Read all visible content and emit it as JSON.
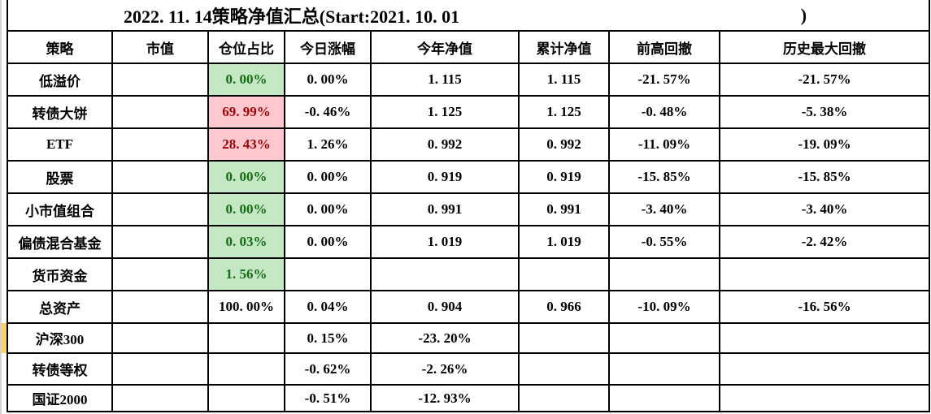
{
  "title": {
    "left": "2022. 11. 14策略净值汇总(Start:2021. 10. 01",
    "right": ")"
  },
  "table": {
    "columns": [
      "策略",
      "市值",
      "仓位占比",
      "今日涨幅",
      "今年净值",
      "累计净值",
      "前高回撤",
      "历史最大回撤"
    ],
    "rows": [
      {
        "name": "低溢价",
        "mv": "",
        "pos": "0. 00%",
        "pos_style": "good",
        "today": "0. 00%",
        "ytd": "1. 115",
        "cum": "1. 115",
        "dd": "-21. 57%",
        "maxdd": "-21. 57%"
      },
      {
        "name": "转债大饼",
        "mv": "",
        "pos": "69. 99%",
        "pos_style": "bad",
        "today": "-0. 46%",
        "ytd": "1. 125",
        "cum": "1. 125",
        "dd": "-0. 48%",
        "maxdd": "-5. 38%"
      },
      {
        "name": "ETF",
        "mv": "",
        "pos": "28. 43%",
        "pos_style": "bad",
        "today": "1. 26%",
        "ytd": "0. 992",
        "cum": "0. 992",
        "dd": "-11. 09%",
        "maxdd": "-19. 09%"
      },
      {
        "name": "股票",
        "mv": "",
        "pos": "0. 00%",
        "pos_style": "good",
        "today": "0. 00%",
        "ytd": "0. 919",
        "cum": "0. 919",
        "dd": "-15. 85%",
        "maxdd": "-15. 85%"
      },
      {
        "name": "小市值组合",
        "mv": "",
        "pos": "0. 00%",
        "pos_style": "good",
        "today": "0. 00%",
        "ytd": "0. 991",
        "cum": "0. 991",
        "dd": "-3. 40%",
        "maxdd": "-3. 40%"
      },
      {
        "name": "偏债混合基金",
        "mv": "",
        "pos": "0. 03%",
        "pos_style": "good",
        "today": "0. 00%",
        "ytd": "1. 019",
        "cum": "1. 019",
        "dd": "-0. 55%",
        "maxdd": "-2. 42%"
      },
      {
        "name": "货币资金",
        "mv": "",
        "pos": "1. 56%",
        "pos_style": "good",
        "today": "",
        "ytd": "",
        "cum": "",
        "dd": "",
        "maxdd": ""
      },
      {
        "name": "总资产",
        "mv": "",
        "pos": "100. 00%",
        "pos_style": "plain",
        "today": "0. 04%",
        "ytd": "0. 904",
        "cum": "0. 966",
        "dd": "-10. 09%",
        "maxdd": "-16. 56%"
      },
      {
        "name": "沪深300",
        "mv": "",
        "pos": "",
        "pos_style": "plain",
        "today": "0. 15%",
        "ytd": "-23. 20%",
        "cum": "",
        "dd": "",
        "maxdd": ""
      },
      {
        "name": "转债等权",
        "mv": "",
        "pos": "",
        "pos_style": "plain",
        "today": "-0. 62%",
        "ytd": "-2. 26%",
        "cum": "",
        "dd": "",
        "maxdd": ""
      },
      {
        "name": "国证2000",
        "mv": "",
        "pos": "",
        "pos_style": "plain",
        "today": "-0. 51%",
        "ytd": "-12. 93%",
        "cum": "",
        "dd": "",
        "maxdd": ""
      }
    ]
  },
  "colors": {
    "green_bg": "#c5e8c4",
    "green_text": "#156a15",
    "red_bg": "#ffc7ce",
    "red_text": "#9c0006",
    "highlight_yellow": "#f7d264",
    "border": "#000000",
    "gutter_line": "#ccd3da"
  }
}
